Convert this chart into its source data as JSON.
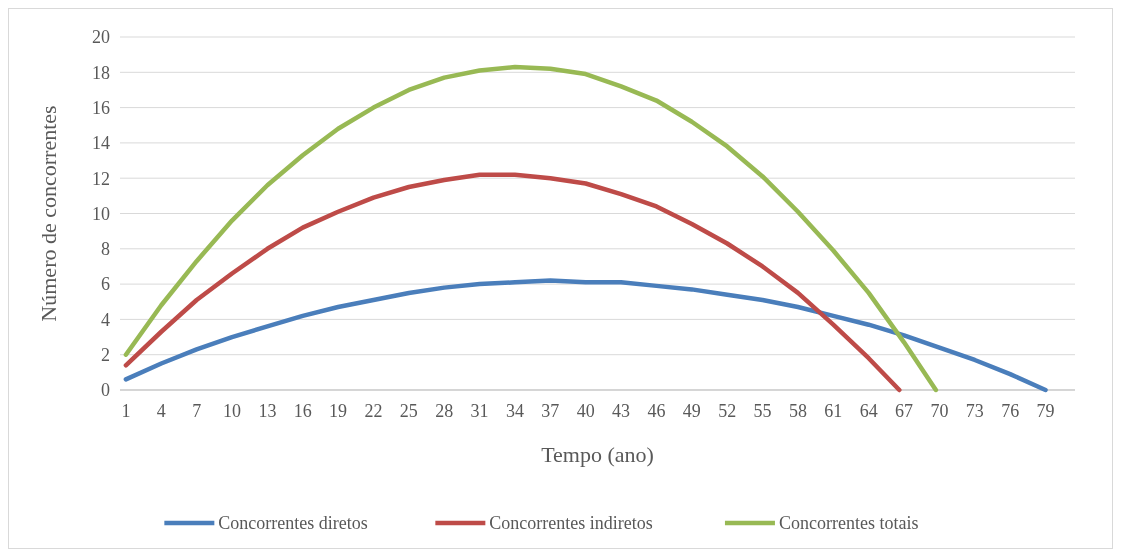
{
  "chart_data": {
    "type": "line",
    "xlabel": "Tempo (ano)",
    "ylabel": "Número de concorrentes",
    "xlim": [
      0.5,
      81.5
    ],
    "xticks": [
      1,
      4,
      7,
      10,
      13,
      16,
      19,
      22,
      25,
      28,
      31,
      34,
      37,
      40,
      43,
      46,
      49,
      52,
      55,
      58,
      61,
      64,
      67,
      70,
      73,
      76,
      79
    ],
    "ylim": [
      0,
      20
    ],
    "yticks": [
      0,
      2,
      4,
      6,
      8,
      10,
      12,
      14,
      16,
      18,
      20
    ],
    "grid": "y",
    "legend": "bottom",
    "marker": "none",
    "line_style": "solid",
    "series": [
      {
        "name": "Concorrentes diretos",
        "color": "#4a7ebb",
        "x": [
          1,
          4,
          7,
          10,
          13,
          16,
          19,
          22,
          25,
          28,
          31,
          34,
          37,
          40,
          43,
          46,
          49,
          52,
          55,
          58,
          61,
          64,
          67,
          70,
          73,
          76,
          79
        ],
        "values": [
          0.6,
          1.5,
          2.3,
          3.0,
          3.6,
          4.2,
          4.7,
          5.1,
          5.5,
          5.8,
          6.0,
          6.1,
          6.2,
          6.1,
          6.1,
          5.9,
          5.7,
          5.4,
          5.1,
          4.7,
          4.2,
          3.7,
          3.1,
          2.4,
          1.7,
          0.9,
          0
        ]
      },
      {
        "name": "Concorrentes indiretos",
        "color": "#be4b48",
        "x": [
          1,
          4,
          7,
          10,
          13,
          16,
          19,
          22,
          25,
          28,
          31,
          33,
          34,
          37,
          40,
          43,
          46,
          49,
          52,
          55,
          58,
          61,
          64,
          66.6
        ],
        "values": [
          1.4,
          3.3,
          5.1,
          6.6,
          8.0,
          9.2,
          10.1,
          10.9,
          11.5,
          11.9,
          12.2,
          12.2,
          12.2,
          12.0,
          11.7,
          11.1,
          10.4,
          9.4,
          8.3,
          7.0,
          5.5,
          3.7,
          1.8,
          0
        ]
      },
      {
        "name": "Concorrentes totais",
        "color": "#98b954",
        "x": [
          1,
          4,
          7,
          10,
          13,
          16,
          19,
          22,
          25,
          28,
          31,
          34,
          37,
          40,
          43,
          46,
          49,
          52,
          55,
          58,
          61,
          64,
          67,
          69.7
        ],
        "values": [
          2.0,
          4.8,
          7.3,
          9.6,
          11.6,
          13.3,
          14.8,
          16.0,
          17.0,
          17.7,
          18.1,
          18.3,
          18.2,
          17.9,
          17.2,
          16.4,
          15.2,
          13.8,
          12.1,
          10.1,
          7.9,
          5.5,
          2.7,
          0
        ]
      }
    ]
  }
}
